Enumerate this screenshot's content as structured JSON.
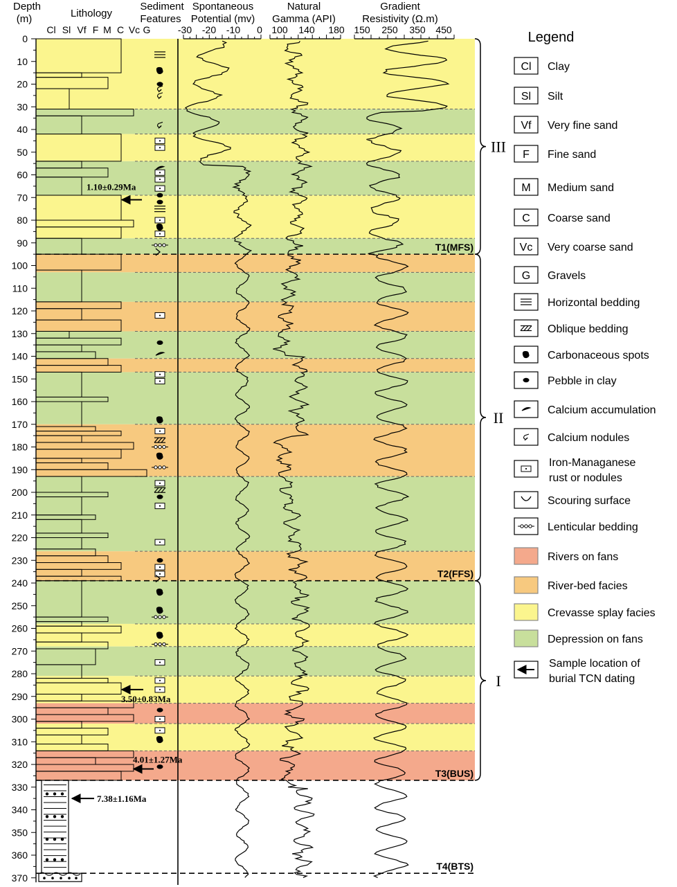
{
  "headers": {
    "depth": "Depth",
    "depth_unit": "(m)",
    "lithology": "Lithology",
    "sediment_1": "Sediment",
    "sediment_2": "Features",
    "sp_1": "Spontaneous",
    "sp_2": "Potential (mv)",
    "gamma_1": "Natural",
    "gamma_2": "Gamma (API)",
    "res_1": "Gradient",
    "res_2": "Resistivity (Ω.m)"
  },
  "litho_ticks": [
    "Cl",
    "Sl",
    "Vf",
    "F",
    "M",
    "C",
    "Vc",
    "G"
  ],
  "sp_ticks": [
    "-30",
    "-20",
    "-10",
    "0"
  ],
  "gamma_ticks": [
    "100",
    "140",
    "180"
  ],
  "res_ticks": [
    "150",
    "250",
    "350",
    "450"
  ],
  "depth_ticks": [
    "0",
    "10",
    "20",
    "30",
    "40",
    "50",
    "60",
    "70",
    "80",
    "90",
    "100",
    "110",
    "120",
    "130",
    "140",
    "150",
    "160",
    "170",
    "180",
    "190",
    "200",
    "210",
    "220",
    "230",
    "240",
    "250",
    "260",
    "270",
    "280",
    "290",
    "300",
    "310",
    "320",
    "330",
    "340",
    "350",
    "360",
    "370"
  ],
  "facies_bands": [
    {
      "top": 0,
      "bottom": 31,
      "facies": "crevasse"
    },
    {
      "top": 31,
      "bottom": 42,
      "facies": "depression"
    },
    {
      "top": 42,
      "bottom": 54,
      "facies": "crevasse"
    },
    {
      "top": 54,
      "bottom": 69,
      "facies": "depression"
    },
    {
      "top": 69,
      "bottom": 88,
      "facies": "crevasse"
    },
    {
      "top": 88,
      "bottom": 95,
      "facies": "depression"
    },
    {
      "top": 95,
      "bottom": 103,
      "facies": "riverbed"
    },
    {
      "top": 103,
      "bottom": 116,
      "facies": "depression"
    },
    {
      "top": 116,
      "bottom": 129,
      "facies": "riverbed"
    },
    {
      "top": 129,
      "bottom": 141,
      "facies": "depression"
    },
    {
      "top": 141,
      "bottom": 147,
      "facies": "riverbed"
    },
    {
      "top": 147,
      "bottom": 170,
      "facies": "depression"
    },
    {
      "top": 170,
      "bottom": 193,
      "facies": "riverbed"
    },
    {
      "top": 193,
      "bottom": 226,
      "facies": "depression"
    },
    {
      "top": 226,
      "bottom": 239,
      "facies": "riverbed"
    },
    {
      "top": 239,
      "bottom": 258,
      "facies": "depression"
    },
    {
      "top": 258,
      "bottom": 268,
      "facies": "crevasse"
    },
    {
      "top": 268,
      "bottom": 281,
      "facies": "depression"
    },
    {
      "top": 281,
      "bottom": 293,
      "facies": "crevasse"
    },
    {
      "top": 293,
      "bottom": 302,
      "facies": "rivers"
    },
    {
      "top": 302,
      "bottom": 314,
      "facies": "crevasse"
    },
    {
      "top": 314,
      "bottom": 327,
      "facies": "rivers"
    }
  ],
  "boundaries": [
    {
      "depth": 95,
      "label": "T1(MFS)"
    },
    {
      "depth": 239,
      "label": "T2(FFS)"
    },
    {
      "depth": 327,
      "label": "T3(BUS)"
    },
    {
      "depth": 368,
      "label": "T4(BTS)"
    }
  ],
  "units": [
    {
      "label": "III",
      "top": 0,
      "bottom": 95
    },
    {
      "label": "II",
      "top": 95,
      "bottom": 239
    },
    {
      "label": "I",
      "top": 239,
      "bottom": 327
    }
  ],
  "ages": [
    {
      "label": "1.10±0.29Ma",
      "depth": 71
    },
    {
      "label": "3.50±0.83Ma",
      "depth": 287
    },
    {
      "label": "4.01±1.27Ma",
      "depth": 322
    },
    {
      "label": "7.38±1.16Ma",
      "depth": 335
    }
  ],
  "colors": {
    "rivers": "#f4a98c",
    "riverbed": "#f7c97f",
    "crevasse": "#fbf58e",
    "depression": "#c8df9c"
  },
  "legend": {
    "title": "Legend",
    "items": [
      {
        "symbol": "Cl",
        "label": "Clay"
      },
      {
        "symbol": "Sl",
        "label": "Silt"
      },
      {
        "symbol": "Vf",
        "label": "Very fine sand"
      },
      {
        "symbol": "F",
        "label": "Fine sand"
      },
      {
        "symbol": "M",
        "label": "Medium sand"
      },
      {
        "symbol": "C",
        "label": "Coarse sand"
      },
      {
        "symbol": "Vc",
        "label": "Very coarse sand"
      },
      {
        "symbol": "G",
        "label": "Gravels"
      },
      {
        "symbol": "horizontal-bedding-icon",
        "label": "Horizontal bedding"
      },
      {
        "symbol": "oblique-bedding-icon",
        "label": "Oblique bedding"
      },
      {
        "symbol": "carbonaceous-spots-icon",
        "label": "Carbonaceous spots"
      },
      {
        "symbol": "pebble-icon",
        "label": "Pebble in clay"
      },
      {
        "symbol": "calcium-accumulation-icon",
        "label": "Calcium accumulation"
      },
      {
        "symbol": "calcium-nodules-icon",
        "label": "Calcium nodules"
      },
      {
        "symbol": "iron-manganese-icon",
        "label": "Iron-Managanese",
        "label2": " rust or nodules"
      },
      {
        "symbol": "scouring-surface-icon",
        "label": "Scouring surface"
      },
      {
        "symbol": "lenticular-bedding-icon",
        "label": "Lenticular bedding"
      },
      {
        "symbol": "rivers",
        "label": "Rivers on fans"
      },
      {
        "symbol": "riverbed",
        "label": "River-bed facies"
      },
      {
        "symbol": "crevasse",
        "label": "Crevasse splay facies"
      },
      {
        "symbol": "depression",
        "label": "Depression on fans"
      },
      {
        "symbol": "arrow-icon",
        "label": "Sample location of",
        "label2": " burial TCN dating"
      }
    ]
  }
}
